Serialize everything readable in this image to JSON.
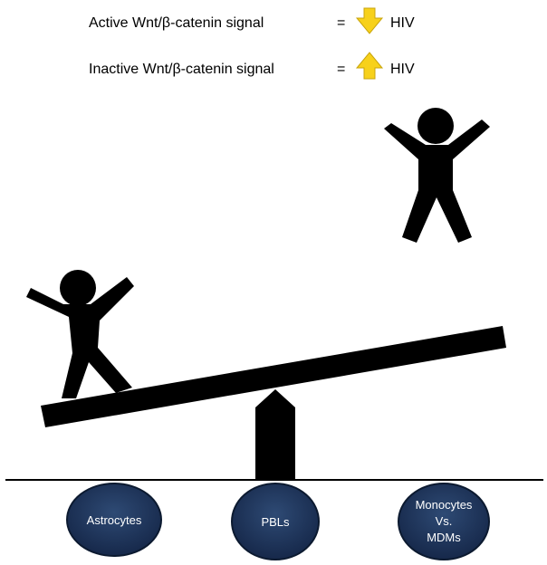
{
  "legend": [
    {
      "label": "Active Wnt/β-catenin signal",
      "equals": "=",
      "arrow": "down-arrow-icon",
      "result": "HIV",
      "arrow_color": "#f7d11b"
    },
    {
      "label": "Inactive Wnt/β-catenin signal",
      "equals": "=",
      "arrow": "up-arrow-icon",
      "result": "HIV",
      "arrow_color": "#f7d11b"
    }
  ],
  "nodes": [
    {
      "lines": [
        "Astrocytes"
      ]
    },
    {
      "lines": [
        "PBLs"
      ]
    },
    {
      "lines": [
        "Monocytes",
        "Vs.",
        "MDMs"
      ]
    }
  ],
  "colors": {
    "figure": "#000000",
    "node_fill": "#1f3556",
    "node_stroke": "#0c1a30"
  }
}
